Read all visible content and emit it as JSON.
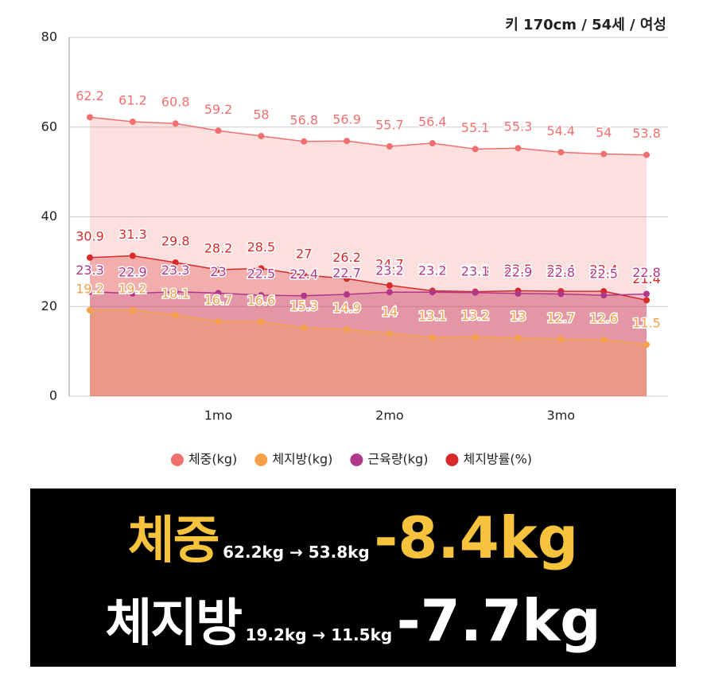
{
  "chart_data": {
    "type": "line",
    "subtitle": "키 170cm / 54세 / 여성",
    "categories": [
      null,
      null,
      null,
      "1mo",
      null,
      null,
      null,
      "2mo",
      null,
      null,
      null,
      "3mo",
      null,
      null
    ],
    "series": [
      {
        "name": "체중(kg)",
        "color": "#f07070",
        "values": [
          62.2,
          61.2,
          60.8,
          59.2,
          58,
          56.8,
          56.9,
          55.7,
          56.4,
          55.1,
          55.3,
          54.4,
          54,
          53.8
        ]
      },
      {
        "name": "체지방(kg)",
        "color": "#f5a04a",
        "values": [
          19.2,
          19.2,
          18.1,
          16.7,
          16.6,
          15.3,
          14.9,
          14,
          13.1,
          13.2,
          13,
          12.7,
          12.6,
          11.5
        ]
      },
      {
        "name": "근육량(kg)",
        "color": "#b0388a",
        "values": [
          23.3,
          22.9,
          23.3,
          23,
          22.5,
          22.4,
          22.7,
          23.2,
          23.2,
          23.1,
          22.9,
          22.8,
          22.5,
          22.8
        ]
      },
      {
        "name": "체지방률(%)",
        "color": "#d82a2a",
        "values": [
          30.9,
          31.3,
          29.8,
          28.2,
          28.5,
          27,
          26.2,
          24.7,
          23.5,
          23.3,
          23.5,
          23.4,
          23.4,
          21.4
        ]
      }
    ],
    "ylim": [
      0,
      80
    ],
    "yticks": [
      0,
      20,
      40,
      60,
      80
    ],
    "grid": true
  },
  "summary": {
    "rows": [
      {
        "label": "체중",
        "change": "62.2kg → 53.8kg",
        "result": "-8.4kg"
      },
      {
        "label": "체지방",
        "change": "19.2kg → 11.5kg",
        "result": "-7.7kg"
      }
    ]
  }
}
